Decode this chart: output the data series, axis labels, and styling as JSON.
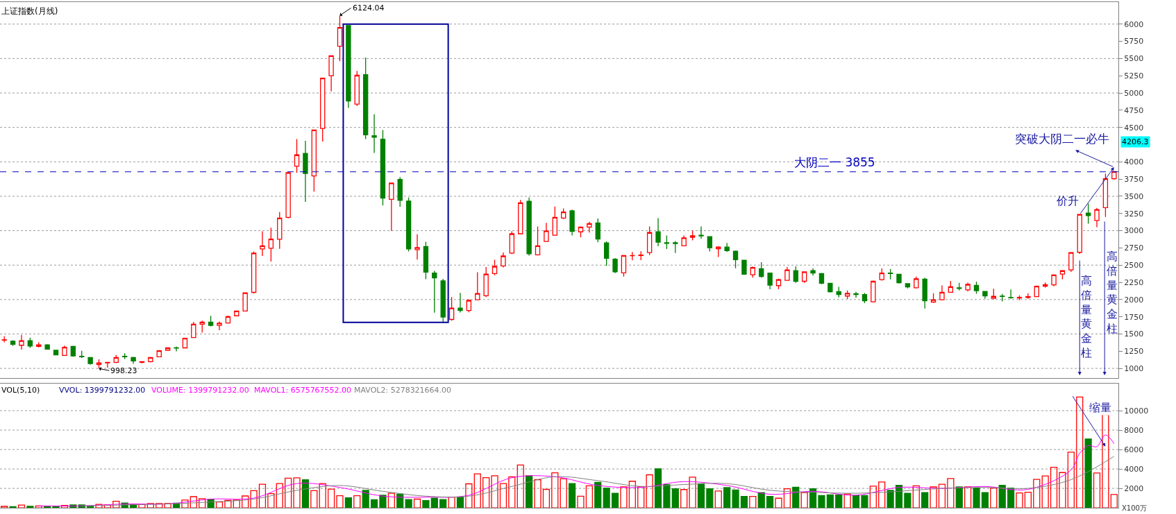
{
  "chart_data": [
    {
      "type": "candlestick",
      "title": "上证指数(月线)",
      "categories": [
        null,
        null,
        null,
        null,
        null,
        null,
        null,
        null,
        null,
        null,
        null,
        null,
        null,
        null,
        null,
        null,
        null,
        null,
        null,
        null,
        null,
        null,
        null,
        null,
        null,
        null,
        null,
        null,
        null,
        null,
        null,
        null,
        null,
        null,
        null,
        null,
        null,
        null,
        null,
        null,
        null,
        null,
        null,
        null,
        null,
        null,
        null,
        null,
        null,
        null,
        null,
        null,
        null,
        null,
        null,
        null,
        null,
        null,
        null,
        null,
        null,
        null,
        null,
        null,
        null,
        null,
        null,
        null,
        null,
        null,
        null,
        null,
        null,
        null,
        null,
        null,
        null,
        null,
        null,
        null,
        null,
        null,
        null,
        null,
        null,
        null,
        null,
        null,
        null,
        null,
        null,
        null,
        null,
        null,
        null,
        null,
        null,
        null,
        null,
        null,
        null,
        null,
        null,
        null,
        null,
        null,
        null,
        null,
        null,
        null,
        null,
        null,
        null,
        null,
        null,
        null,
        null,
        null,
        null,
        null,
        null,
        null,
        null,
        null,
        null,
        null,
        null,
        null,
        null,
        null
      ],
      "ohlc": [
        [
          1410,
          1466,
          1378,
          1416
        ],
        [
          1396,
          1410,
          1326,
          1350
        ],
        [
          1336,
          1484,
          1273,
          1403
        ],
        [
          1403,
          1448,
          1298,
          1326
        ],
        [
          1319,
          1378,
          1305,
          1343
        ],
        [
          1343,
          1350,
          1275,
          1280
        ],
        [
          1263,
          1268,
          1190,
          1196
        ],
        [
          1189,
          1330,
          1187,
          1308
        ],
        [
          1319,
          1328,
          1170,
          1182
        ],
        [
          1175,
          1256,
          1151,
          1170
        ],
        [
          1158,
          1160,
          1054,
          1070
        ],
        [
          1056,
          1133,
          998.23,
          1081
        ],
        [
          1081,
          1094,
          1011,
          1088
        ],
        [
          1088,
          1196,
          1076,
          1158
        ],
        [
          1175,
          1221,
          1134,
          1170
        ],
        [
          1158,
          1166,
          1067,
          1109
        ],
        [
          1088,
          1105,
          1074,
          1098
        ],
        [
          1098,
          1162,
          1086,
          1158
        ],
        [
          1168,
          1266,
          1163,
          1256
        ],
        [
          1263,
          1306,
          1260,
          1298
        ],
        [
          1298,
          1319,
          1249,
          1294
        ],
        [
          1298,
          1445,
          1296,
          1438
        ],
        [
          1449,
          1676,
          1449,
          1641
        ],
        [
          1641,
          1694,
          1519,
          1672
        ],
        [
          1672,
          1764,
          1610,
          1624
        ],
        [
          1624,
          1680,
          1554,
          1658
        ],
        [
          1659,
          1766,
          1650,
          1753
        ],
        [
          1764,
          1840,
          1760,
          1834
        ],
        [
          1834,
          2100,
          1830,
          2097
        ],
        [
          2104,
          2698,
          2088,
          2675
        ],
        [
          2734,
          2990,
          2633,
          2780
        ],
        [
          2745,
          3043,
          2552,
          2878
        ],
        [
          2875,
          3270,
          2735,
          3183
        ],
        [
          3193,
          3842,
          3180,
          3842
        ],
        [
          3936,
          4329,
          3842,
          4101
        ],
        [
          4122,
          4304,
          3418,
          3831
        ],
        [
          3796,
          4462,
          3568,
          4462
        ],
        [
          4486,
          5215,
          4294,
          5215
        ],
        [
          5250,
          5541,
          5023,
          5541
        ],
        [
          5678,
          6124.04,
          5460,
          5951
        ],
        [
          5979,
          5979,
          4784,
          4882
        ],
        [
          4837,
          5320,
          4812,
          5257
        ],
        [
          5265,
          5513,
          4330,
          4392
        ],
        [
          4380,
          4690,
          4129,
          4357
        ],
        [
          4329,
          4462,
          3365,
          3474
        ],
        [
          3456,
          3691,
          2997,
          3691
        ],
        [
          3744,
          3779,
          3347,
          3439
        ],
        [
          3430,
          3481,
          2699,
          2736
        ],
        [
          2725,
          2948,
          2580,
          2755
        ],
        [
          2769,
          2840,
          2296,
          2397
        ],
        [
          2384,
          2420,
          1809,
          2314
        ],
        [
          2272,
          2300,
          1664,
          1746
        ],
        [
          1711,
          2037,
          1694,
          1876
        ],
        [
          1876,
          2097,
          1811,
          1841
        ],
        [
          1841,
          2000,
          1815,
          1988
        ],
        [
          1997,
          2395,
          1990,
          2088
        ],
        [
          2055,
          2472,
          2037,
          2370
        ],
        [
          2377,
          2577,
          2350,
          2482
        ],
        [
          2489,
          2682,
          2466,
          2633
        ],
        [
          2675,
          2990,
          2660,
          2955
        ],
        [
          2955,
          3446,
          2950,
          3404
        ],
        [
          3428,
          3481,
          2639,
          2664
        ],
        [
          2650,
          3060,
          2640,
          2780
        ],
        [
          2843,
          3113,
          2840,
          2997
        ],
        [
          2934,
          3351,
          2930,
          3194
        ],
        [
          3183,
          3323,
          3170,
          3271
        ],
        [
          3288,
          3306,
          2930,
          2990
        ],
        [
          2983,
          3062,
          2903,
          3053
        ],
        [
          3053,
          3130,
          2973,
          3102
        ],
        [
          3113,
          3176,
          2833,
          2878
        ],
        [
          2822,
          2845,
          2489,
          2598
        ],
        [
          2587,
          2602,
          2384,
          2402
        ],
        [
          2388,
          2640,
          2332,
          2640
        ],
        [
          2637,
          2692,
          2570,
          2640
        ],
        [
          2640,
          2700,
          2573,
          2647
        ],
        [
          2682,
          3060,
          2645,
          2973
        ],
        [
          2983,
          3183,
          2773,
          2833
        ],
        [
          2825,
          2931,
          2734,
          2815
        ],
        [
          2825,
          2850,
          2675,
          2812
        ],
        [
          2780,
          2931,
          2777,
          2896
        ],
        [
          2903,
          3001,
          2860,
          2927
        ],
        [
          2934,
          3060,
          2885,
          2925
        ],
        [
          2913,
          2915,
          2699,
          2752
        ],
        [
          2738,
          2773,
          2619,
          2763
        ],
        [
          2762,
          2822,
          2690,
          2710
        ],
        [
          2703,
          2710,
          2454,
          2580
        ],
        [
          2570,
          2572,
          2360,
          2367
        ],
        [
          2360,
          2478,
          2317,
          2465
        ],
        [
          2447,
          2542,
          2319,
          2335
        ],
        [
          2384,
          2390,
          2149,
          2209
        ],
        [
          2202,
          2303,
          2149,
          2290
        ],
        [
          2279,
          2472,
          2273,
          2430
        ],
        [
          2419,
          2482,
          2242,
          2265
        ],
        [
          2265,
          2402,
          2243,
          2402
        ],
        [
          2419,
          2453,
          2349,
          2384
        ],
        [
          2377,
          2385,
          2223,
          2236
        ],
        [
          2236,
          2240,
          2102,
          2114
        ],
        [
          2114,
          2184,
          2030,
          2072
        ],
        [
          2051,
          2132,
          2009,
          2090
        ],
        [
          2086,
          2112,
          2025,
          2072
        ],
        [
          2072,
          2096,
          1949,
          1981
        ],
        [
          1967,
          2276,
          1959,
          2265
        ],
        [
          2289,
          2452,
          2276,
          2384
        ],
        [
          2385,
          2444,
          2292,
          2378
        ],
        [
          2366,
          2373,
          2232,
          2244
        ],
        [
          2230,
          2236,
          2161,
          2184
        ],
        [
          2170,
          2334,
          2163,
          2301
        ],
        [
          2297,
          2316,
          1869,
          1983
        ],
        [
          1963,
          2092,
          1952,
          1997
        ],
        [
          1997,
          2205,
          1988,
          2105
        ],
        [
          2105,
          2270,
          2098,
          2185
        ],
        [
          2170,
          2243,
          2131,
          2160
        ],
        [
          2140,
          2244,
          2118,
          2220
        ],
        [
          2206,
          2260,
          2084,
          2129
        ],
        [
          2118,
          2120,
          2010,
          2052
        ],
        [
          2017,
          2158,
          2004,
          2046
        ],
        [
          2050,
          2081,
          1974,
          2046
        ],
        [
          2030,
          2146,
          2014,
          2026
        ],
        [
          2022,
          2062,
          1991,
          2033
        ],
        [
          2031,
          2089,
          2010,
          2042
        ],
        [
          2042,
          2202,
          2038,
          2193
        ],
        [
          2193,
          2248,
          2175,
          2217
        ],
        [
          2213,
          2366,
          2191,
          2357
        ],
        [
          2370,
          2424,
          2293,
          2419
        ],
        [
          2430,
          2688,
          2402,
          2682
        ],
        [
          2686,
          3239,
          2664,
          3235
        ],
        [
          3257,
          3393,
          3102,
          3218
        ],
        [
          3148,
          3330,
          3050,
          3306
        ],
        [
          3334,
          3830,
          3200,
          3754
        ],
        [
          3754,
          3862,
          3740,
          3859
        ]
      ],
      "ylim": [
        860,
        6320
      ],
      "yticks": [
        1000,
        1250,
        1500,
        1750,
        2000,
        2250,
        2500,
        2750,
        3000,
        3250,
        3500,
        3750,
        4000,
        4500,
        4750,
        5000,
        5250,
        5500,
        5750,
        6000
      ],
      "grid": "y",
      "tick_labels": "y",
      "ref_lines": [
        {
          "axis": "y",
          "value": 3855,
          "label": "大阴二一 3855",
          "color": "#0000c0",
          "line_style": "dashed"
        }
      ],
      "annotations": [
        "6124.04",
        "998.23",
        "突破大阴二一必牛",
        "价升",
        "高倍量黄金柱",
        "高倍量黄金柱",
        "4206.3"
      ]
    },
    {
      "type": "bar",
      "categories": [
        null,
        null,
        null,
        null,
        null,
        null,
        null,
        null,
        null,
        null,
        null,
        null,
        null,
        null,
        null,
        null,
        null,
        null,
        null,
        null,
        null,
        null,
        null,
        null,
        null,
        null,
        null,
        null,
        null,
        null,
        null,
        null,
        null,
        null,
        null,
        null,
        null,
        null,
        null,
        null,
        null,
        null,
        null,
        null,
        null,
        null,
        null,
        null,
        null,
        null,
        null,
        null,
        null,
        null,
        null,
        null,
        null,
        null,
        null,
        null,
        null,
        null,
        null,
        null,
        null,
        null,
        null,
        null,
        null,
        null,
        null,
        null,
        null,
        null,
        null,
        null,
        null,
        null,
        null,
        null,
        null,
        null,
        null,
        null,
        null,
        null,
        null,
        null,
        null,
        null,
        null,
        null,
        null,
        null,
        null,
        null,
        null,
        null,
        null,
        null,
        null,
        null,
        null,
        null,
        null,
        null,
        null,
        null,
        null,
        null,
        null,
        null,
        null,
        null,
        null,
        null,
        null,
        null,
        null,
        null,
        null,
        null,
        null,
        null,
        null,
        null,
        null,
        null,
        null,
        null
      ],
      "series": [
        {
          "type": "bar",
          "colors": [
            "#ff0000",
            "#008000",
            "#ff0000",
            "#008000",
            "#ff0000",
            "#008000",
            "#008000",
            "#ff0000",
            "#008000",
            "#008000",
            "#008000",
            "#ff0000",
            "#ff0000",
            "#ff0000",
            "#008000",
            "#008000",
            "#ff0000",
            "#ff0000",
            "#ff0000",
            "#ff0000",
            "#008000",
            "#ff0000",
            "#ff0000",
            "#ff0000",
            "#008000",
            "#ff0000",
            "#ff0000",
            "#ff0000",
            "#ff0000",
            "#ff0000",
            "#ff0000",
            "#ff0000",
            "#ff0000",
            "#ff0000",
            "#ff0000",
            "#008000",
            "#ff0000",
            "#ff0000",
            "#ff0000",
            "#ff0000",
            "#008000",
            "#ff0000",
            "#008000",
            "#008000",
            "#008000",
            "#ff0000",
            "#008000",
            "#008000",
            "#ff0000",
            "#008000",
            "#008000",
            "#008000",
            "#ff0000",
            "#008000",
            "#ff0000",
            "#ff0000",
            "#ff0000",
            "#ff0000",
            "#ff0000",
            "#ff0000",
            "#ff0000",
            "#008000",
            "#ff0000",
            "#ff0000",
            "#ff0000",
            "#ff0000",
            "#008000",
            "#ff0000",
            "#ff0000",
            "#008000",
            "#008000",
            "#008000",
            "#ff0000",
            "#ff0000",
            "#ff0000",
            "#ff0000",
            "#008000",
            "#008000",
            "#008000",
            "#ff0000",
            "#ff0000",
            "#008000",
            "#008000",
            "#ff0000",
            "#008000",
            "#008000",
            "#008000",
            "#ff0000",
            "#008000",
            "#008000",
            "#ff0000",
            "#ff0000",
            "#008000",
            "#ff0000",
            "#008000",
            "#008000",
            "#008000",
            "#008000",
            "#ff0000",
            "#008000",
            "#008000",
            "#ff0000",
            "#ff0000",
            "#008000",
            "#008000",
            "#008000",
            "#ff0000",
            "#008000",
            "#ff0000",
            "#ff0000",
            "#ff0000",
            "#008000",
            "#ff0000",
            "#008000",
            "#008000",
            "#ff0000",
            "#008000",
            "#008000",
            "#ff0000",
            "#ff0000",
            "#ff0000",
            "#ff0000",
            "#ff0000",
            "#ff0000",
            "#ff0000",
            "#ff0000",
            "#008000",
            "#ff0000",
            "#ff0000",
            "#ff0000"
          ],
          "values": [
            150,
            130,
            280,
            150,
            200,
            150,
            150,
            250,
            300,
            300,
            150,
            350,
            300,
            680,
            500,
            330,
            350,
            450,
            450,
            450,
            480,
            800,
            1150,
            950,
            870,
            600,
            760,
            800,
            1220,
            1770,
            2430,
            1460,
            2500,
            3050,
            3090,
            2890,
            1770,
            2500,
            1920,
            1250,
            1030,
            1250,
            1800,
            830,
            1300,
            1500,
            1400,
            850,
            900,
            750,
            1000,
            850,
            1100,
            1100,
            2470,
            3500,
            3100,
            3300,
            2500,
            3200,
            4400,
            3300,
            2900,
            1900,
            3600,
            3000,
            2500,
            1200,
            2270,
            2620,
            2040,
            1490,
            2150,
            2740,
            2150,
            3400,
            4020,
            2390,
            1960,
            1880,
            3160,
            2470,
            1960,
            1730,
            2080,
            1840,
            1180,
            1180,
            1570,
            1180,
            990,
            1960,
            2120,
            1570,
            1960,
            1260,
            1340,
            1340,
            1420,
            1260,
            1260,
            2230,
            2660,
            1800,
            2310,
            1490,
            2270,
            1570,
            2150,
            2430,
            3010,
            2150,
            2150,
            2040,
            1570,
            2040,
            2310,
            2040,
            1530,
            1610,
            2930,
            3280,
            4170,
            3630,
            5730,
            11400,
            7090,
            3590,
            9610,
            1380
          ]
        },
        {
          "type": "line",
          "color": "#ff00ff",
          "values": [
            null,
            null,
            null,
            null,
            200,
            null,
            null,
            null,
            null,
            200,
            null,
            null,
            null,
            null,
            400,
            null,
            null,
            null,
            null,
            400,
            null,
            null,
            null,
            null,
            900,
            null,
            null,
            null,
            null,
            1000,
            null,
            null,
            null,
            null,
            2500,
            null,
            null,
            null,
            null,
            2100,
            null,
            null,
            null,
            null,
            1200,
            null,
            null,
            null,
            null,
            1100,
            null,
            null,
            null,
            null,
            1300,
            null,
            null,
            null,
            null,
            3100,
            null,
            null,
            null,
            null,
            3200,
            null,
            null,
            null,
            null,
            2300,
            null,
            null,
            null,
            null,
            2100,
            null,
            null,
            null,
            null,
            2700,
            null,
            null,
            null,
            null,
            2300,
            null,
            null,
            null,
            null,
            1400,
            null,
            null,
            null,
            null,
            1700,
            null,
            null,
            null,
            null,
            1300,
            null,
            null,
            null,
            null,
            2100,
            null,
            null,
            null,
            null,
            2000,
            null,
            null,
            null,
            null,
            2200,
            null,
            null,
            null,
            null,
            1900,
            null,
            null,
            null,
            null,
            3900,
            5600,
            6400,
            6300,
            7500,
            6600
          ]
        },
        {
          "type": "line",
          "color": "#808080",
          "values": [
            null,
            null,
            null,
            null,
            null,
            null,
            null,
            null,
            null,
            200,
            null,
            null,
            null,
            null,
            300,
            null,
            null,
            null,
            null,
            400,
            null,
            null,
            null,
            null,
            600,
            null,
            null,
            null,
            null,
            900,
            null,
            null,
            null,
            null,
            1800,
            null,
            null,
            null,
            null,
            2300,
            null,
            null,
            null,
            null,
            1700,
            null,
            null,
            null,
            null,
            1200,
            null,
            null,
            null,
            null,
            1200,
            null,
            null,
            null,
            null,
            2200,
            null,
            null,
            null,
            null,
            3200,
            null,
            null,
            null,
            null,
            2800,
            null,
            null,
            null,
            null,
            2200,
            null,
            null,
            null,
            null,
            2400,
            null,
            null,
            null,
            null,
            2500,
            null,
            null,
            null,
            null,
            1800,
            null,
            null,
            null,
            null,
            1600,
            null,
            null,
            null,
            null,
            1500,
            null,
            null,
            null,
            null,
            1700,
            null,
            null,
            null,
            null,
            2000,
            null,
            null,
            null,
            null,
            2100,
            null,
            null,
            null,
            null,
            2000,
            null,
            null,
            null,
            null,
            2900,
            null,
            null,
            null,
            null,
            5300
          ]
        }
      ],
      "ylim": [
        0,
        12800
      ],
      "yticks": [
        2000,
        4000,
        6000,
        8000,
        10000
      ],
      "grid": "y",
      "tick_labels": "y",
      "annotations": [
        "VOL(5,10)",
        "VVOL: 1399791232.00",
        "VOLUME: 1399791232.00",
        "MAVOL1: 6575767552.00",
        "MAVOL2: 5278321664.00",
        "缩量",
        "X100万"
      ]
    }
  ]
}
